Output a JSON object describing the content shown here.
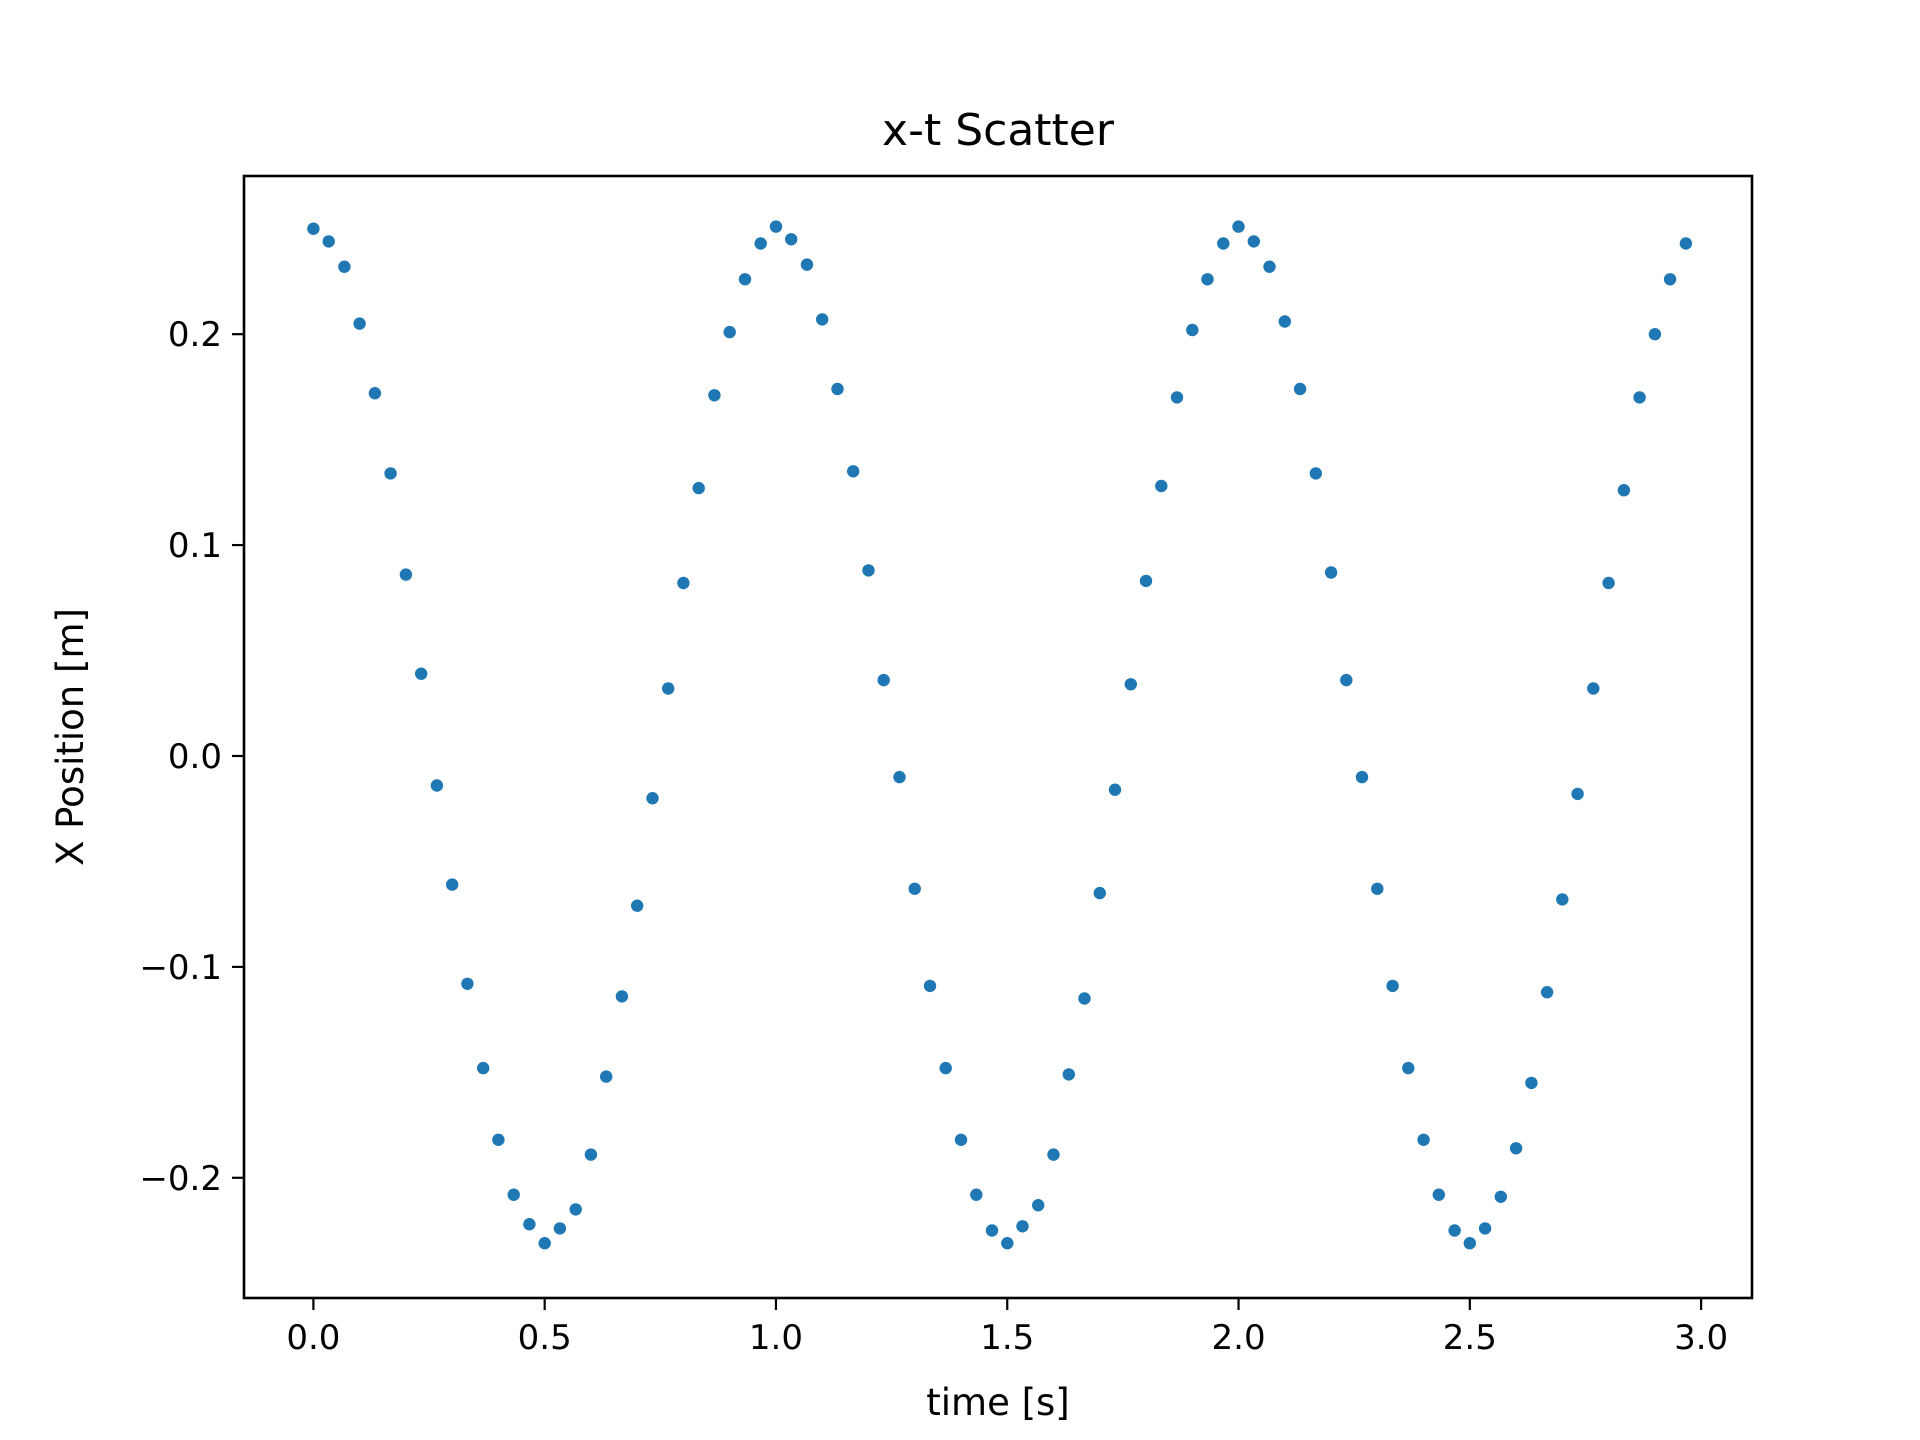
{
  "chart_data": {
    "type": "scatter",
    "title": "x-t Scatter",
    "xlabel": "time [s]",
    "ylabel": "X Position [m]",
    "xlim": [
      -0.15,
      3.11
    ],
    "ylim": [
      -0.257,
      0.275
    ],
    "xticks": [
      0.0,
      0.5,
      1.0,
      1.5,
      2.0,
      2.5,
      3.0
    ],
    "xtick_labels": [
      "0.0",
      "0.5",
      "1.0",
      "1.5",
      "2.0",
      "2.5",
      "3.0"
    ],
    "yticks": [
      -0.2,
      -0.1,
      0.0,
      0.1,
      0.2
    ],
    "ytick_labels": [
      "−0.2",
      "−0.1",
      "0.0",
      "0.1",
      "0.2"
    ],
    "grid": false,
    "legend": "none",
    "marker_color": "#1f77b4",
    "series": [
      {
        "x": [
          0.0,
          0.033,
          0.067,
          0.1,
          0.133,
          0.167,
          0.2,
          0.233,
          0.267,
          0.3,
          0.333,
          0.367,
          0.4,
          0.433,
          0.467,
          0.5,
          0.533,
          0.567,
          0.6,
          0.633,
          0.667,
          0.7,
          0.733,
          0.767,
          0.8,
          0.833,
          0.867,
          0.9,
          0.933,
          0.967,
          1.0,
          1.033,
          1.067,
          1.1,
          1.133,
          1.167,
          1.2,
          1.233,
          1.267,
          1.3,
          1.333,
          1.367,
          1.4,
          1.433,
          1.467,
          1.5,
          1.533,
          1.567,
          1.6,
          1.633,
          1.667,
          1.7,
          1.733,
          1.767,
          1.8,
          1.833,
          1.867,
          1.9,
          1.933,
          1.967,
          2.0,
          2.033,
          2.067,
          2.1,
          2.133,
          2.167,
          2.2,
          2.233,
          2.267,
          2.3,
          2.333,
          2.367,
          2.4,
          2.433,
          2.467,
          2.5,
          2.533,
          2.567,
          2.6,
          2.633,
          2.667,
          2.7,
          2.733,
          2.767,
          2.8,
          2.833,
          2.867,
          2.9,
          2.933,
          2.967
        ],
        "y": [
          0.25,
          0.244,
          0.232,
          0.205,
          0.172,
          0.134,
          0.086,
          0.039,
          -0.014,
          -0.061,
          -0.108,
          -0.148,
          -0.182,
          -0.208,
          -0.222,
          -0.231,
          -0.224,
          -0.215,
          -0.189,
          -0.152,
          -0.114,
          -0.071,
          -0.02,
          0.032,
          0.082,
          0.127,
          0.171,
          0.201,
          0.226,
          0.243,
          0.251,
          0.245,
          0.233,
          0.207,
          0.174,
          0.135,
          0.088,
          0.036,
          -0.01,
          -0.063,
          -0.109,
          -0.148,
          -0.182,
          -0.208,
          -0.225,
          -0.231,
          -0.223,
          -0.213,
          -0.189,
          -0.151,
          -0.115,
          -0.065,
          -0.016,
          0.034,
          0.083,
          0.128,
          0.17,
          0.202,
          0.226,
          0.243,
          0.251,
          0.244,
          0.232,
          0.206,
          0.174,
          0.134,
          0.087,
          0.036,
          -0.01,
          -0.063,
          -0.109,
          -0.148,
          -0.182,
          -0.208,
          -0.225,
          -0.231,
          -0.224,
          -0.209,
          -0.186,
          -0.155,
          -0.112,
          -0.068,
          -0.018,
          0.032,
          0.082,
          0.126,
          0.17,
          0.2,
          0.226,
          0.243
        ]
      }
    ]
  }
}
